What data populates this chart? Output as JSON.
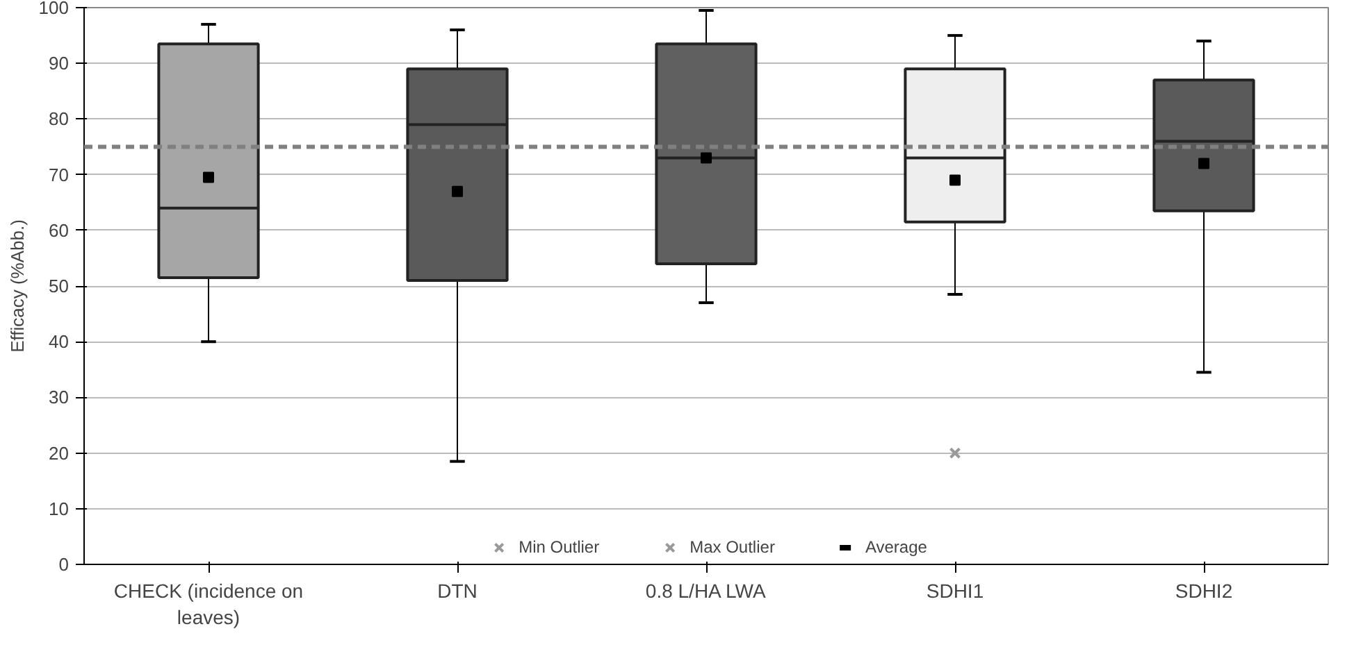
{
  "chart_data": {
    "type": "box",
    "ylabel": "Efficacy (%Abb.)",
    "categories": [
      "CHECK (incidence on leaves)",
      "DTN",
      "0.8 L/HA LWA",
      "SDHI1",
      "SDHI2"
    ],
    "ylim": [
      0,
      100
    ],
    "yticks": [
      0,
      10,
      20,
      30,
      40,
      50,
      60,
      70,
      80,
      90,
      100
    ],
    "grid": "y",
    "legend": "bottom",
    "series": [
      {
        "colors": [
          "#a6a6a6",
          "#5a5a5a",
          "#606060",
          "#eeeeee",
          "#5a5a5a"
        ],
        "boxes": [
          {
            "low": 40,
            "q1": 51.5,
            "median": 64,
            "q3": 93.5,
            "high": 97,
            "mean": 69.5
          },
          {
            "low": 18.5,
            "q1": 51,
            "median": 79,
            "q3": 89,
            "high": 96,
            "mean": 67
          },
          {
            "low": 47,
            "q1": 54,
            "median": 73,
            "q3": 93.5,
            "high": 99.5,
            "mean": 73
          },
          {
            "low": 48.5,
            "q1": 61.5,
            "median": 73,
            "q3": 89,
            "high": 95,
            "mean": 69
          },
          {
            "low": 34.5,
            "q1": 63.5,
            "median": 76,
            "q3": 87,
            "high": 94,
            "mean": 72
          }
        ]
      },
      {
        "type": "scatter",
        "name": "Min Outlier",
        "marker": "cross",
        "color": "#999999",
        "x": [
          "SDHI1"
        ],
        "values": [
          20
        ]
      },
      {
        "type": "scatter",
        "name": "Max Outlier",
        "marker": "cross",
        "color": "#999999",
        "values": [
          null,
          null,
          null,
          null,
          null
        ]
      },
      {
        "type": "scatter",
        "name": "Average",
        "color": "#000000",
        "values": [
          null,
          null,
          null,
          null,
          null
        ]
      }
    ],
    "ref_lines": [
      {
        "axis": "y",
        "value": 75,
        "color": "#808080",
        "line_style": "dashed"
      }
    ]
  }
}
